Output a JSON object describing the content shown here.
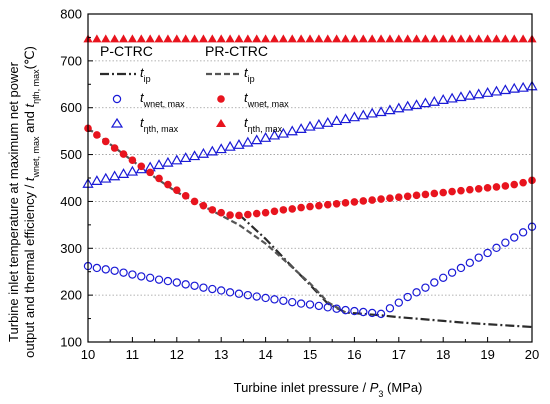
{
  "chart_data": {
    "type": "scatter",
    "xlabel_prefix": "Turbine inlet pressure / ",
    "xlabel_var": "P",
    "xlabel_sub": "3",
    "xlabel_suffix": " (MPa)",
    "ylabel_line1": "Turbine inlet temperature at maximum net power",
    "ylabel_line2_a": "output and thermal efficiency / ",
    "ylabel_line2_t1": "t",
    "ylabel_line2_s1": "wnet, max",
    "ylabel_line2_b": " and ",
    "ylabel_line2_t2": "t",
    "ylabel_line2_s2": "ηth, max",
    "ylabel_line2_c": "(℃)",
    "xlim": [
      10,
      20
    ],
    "ylim": [
      100,
      800
    ],
    "xticks": [
      "10",
      "11",
      "12",
      "13",
      "14",
      "15",
      "16",
      "17",
      "18",
      "19",
      "20"
    ],
    "yticks": [
      "100",
      "200",
      "300",
      "400",
      "500",
      "600",
      "700",
      "800"
    ],
    "grid": "horizontal dotted",
    "legend": {
      "group1": "P-CTRC",
      "group2": "PR-CTRC",
      "entries": [
        {
          "t": "t",
          "sub": "ip"
        },
        {
          "t": "t",
          "sub": "wnet, max"
        },
        {
          "t": "t",
          "sub": "ηth, max"
        }
      ]
    },
    "colors": {
      "blue": "#1a1ad6",
      "red": "#e8141e",
      "pctrc_line": "#2b2b2b",
      "prctrc_line": "#555555"
    },
    "series": [
      {
        "group": "P-CTRC",
        "var": "t_ip",
        "style": "dash-dot",
        "x": [
          13.4,
          14.0,
          14.5,
          15.0,
          15.4,
          15.8,
          16.2,
          16.6,
          17.0,
          17.5,
          18.0,
          18.5,
          19.0,
          19.5,
          20.0
        ],
        "y": [
          372,
          320,
          270,
          222,
          182,
          163,
          160,
          157,
          153,
          149,
          145,
          141,
          138,
          135,
          132
        ]
      },
      {
        "group": "PR-CTRC",
        "var": "t_ip",
        "style": "dash",
        "x": [
          10.0,
          10.5,
          11.0,
          11.5,
          12.0,
          12.5,
          13.0,
          13.4,
          14.0,
          14.5,
          15.0,
          15.4,
          15.8
        ],
        "y": [
          556,
          522,
          487,
          452,
          420,
          395,
          370,
          350,
          310,
          268,
          225,
          185,
          163
        ]
      },
      {
        "group": "P-CTRC",
        "var": "t_wnet_max",
        "style": "open-circle",
        "x": [
          10.0,
          10.2,
          10.4,
          10.6,
          10.8,
          11.0,
          11.2,
          11.4,
          11.6,
          11.8,
          12.0,
          12.2,
          12.4,
          12.6,
          12.8,
          13.0,
          13.2,
          13.4,
          13.6,
          13.8,
          14.0,
          14.2,
          14.4,
          14.6,
          14.8,
          15.0,
          15.2,
          15.4,
          15.6,
          15.8,
          16.0,
          16.2,
          16.4,
          16.6,
          16.8,
          17.0,
          17.2,
          17.4,
          17.6,
          17.8,
          18.0,
          18.2,
          18.4,
          18.6,
          18.8,
          19.0,
          19.2,
          19.4,
          19.6,
          19.8,
          20.0
        ],
        "y": [
          262,
          258,
          255,
          252,
          248,
          244,
          240,
          237,
          233,
          230,
          227,
          223,
          220,
          216,
          213,
          210,
          206,
          203,
          200,
          197,
          194,
          191,
          188,
          185,
          182,
          180,
          177,
          174,
          171,
          168,
          166,
          164,
          162,
          160,
          172,
          184,
          196,
          206,
          216,
          227,
          237,
          248,
          258,
          269,
          280,
          290,
          301,
          312,
          323,
          334,
          346
        ]
      },
      {
        "group": "P-CTRC",
        "var": "t_eta_max",
        "style": "open-triangle",
        "x": [
          10.0,
          10.2,
          10.4,
          10.6,
          10.8,
          11.0,
          11.2,
          11.4,
          11.6,
          11.8,
          12.0,
          12.2,
          12.4,
          12.6,
          12.8,
          13.0,
          13.2,
          13.4,
          13.6,
          13.8,
          14.0,
          14.2,
          14.4,
          14.6,
          14.8,
          15.0,
          15.2,
          15.4,
          15.6,
          15.8,
          16.0,
          16.2,
          16.4,
          16.6,
          16.8,
          17.0,
          17.2,
          17.4,
          17.6,
          17.8,
          18.0,
          18.2,
          18.4,
          18.6,
          18.8,
          19.0,
          19.2,
          19.4,
          19.6,
          19.8,
          20.0
        ],
        "y": [
          438,
          444,
          449,
          454,
          459,
          464,
          469,
          473,
          478,
          483,
          488,
          493,
          497,
          502,
          507,
          512,
          517,
          521,
          526,
          531,
          536,
          541,
          545,
          550,
          555,
          560,
          564,
          568,
          572,
          576,
          580,
          584,
          588,
          591,
          595,
          599,
          603,
          606,
          610,
          613,
          617,
          620,
          623,
          626,
          629,
          632,
          635,
          638,
          641,
          643,
          646
        ]
      },
      {
        "group": "PR-CTRC",
        "var": "t_wnet_max",
        "style": "filled-circle",
        "x": [
          10.0,
          10.2,
          10.4,
          10.6,
          10.8,
          11.0,
          11.2,
          11.4,
          11.6,
          11.8,
          12.0,
          12.2,
          12.4,
          12.6,
          12.8,
          13.0,
          13.2,
          13.4,
          13.6,
          13.8,
          14.0,
          14.2,
          14.4,
          14.6,
          14.8,
          15.0,
          15.2,
          15.4,
          15.6,
          15.8,
          16.0,
          16.2,
          16.4,
          16.6,
          16.8,
          17.0,
          17.2,
          17.4,
          17.6,
          17.8,
          18.0,
          18.2,
          18.4,
          18.6,
          18.8,
          19.0,
          19.2,
          19.4,
          19.6,
          19.8,
          20.0
        ],
        "y": [
          556,
          542,
          528,
          514,
          501,
          488,
          475,
          462,
          449,
          436,
          424,
          412,
          400,
          391,
          382,
          376,
          371,
          370,
          372,
          374,
          376,
          379,
          382,
          384,
          387,
          389,
          391,
          393,
          395,
          397,
          399,
          401,
          403,
          405,
          407,
          409,
          411,
          413,
          415,
          417,
          419,
          421,
          423,
          425,
          427,
          429,
          431,
          433,
          436,
          440,
          445
        ]
      },
      {
        "group": "PR-CTRC",
        "var": "t_eta_max",
        "style": "filled-triangle",
        "x": [
          10.0,
          10.2,
          10.4,
          10.6,
          10.8,
          11.0,
          11.2,
          11.4,
          11.6,
          11.8,
          12.0,
          12.2,
          12.4,
          12.6,
          12.8,
          13.0,
          13.2,
          13.4,
          13.6,
          13.8,
          14.0,
          14.2,
          14.4,
          14.6,
          14.8,
          15.0,
          15.2,
          15.4,
          15.6,
          15.8,
          16.0,
          16.2,
          16.4,
          16.6,
          16.8,
          17.0,
          17.2,
          17.4,
          17.6,
          17.8,
          18.0,
          18.2,
          18.4,
          18.6,
          18.8,
          19.0,
          19.2,
          19.4,
          19.6,
          19.8,
          20.0
        ],
        "y": [
          747,
          747,
          747,
          747,
          747,
          747,
          747,
          747,
          747,
          747,
          747,
          747,
          747,
          747,
          747,
          747,
          747,
          747,
          747,
          747,
          747,
          747,
          747,
          747,
          747,
          747,
          747,
          747,
          747,
          747,
          747,
          747,
          747,
          747,
          747,
          747,
          747,
          747,
          747,
          747,
          747,
          747,
          747,
          747,
          747,
          747,
          747,
          747,
          747,
          747,
          747
        ]
      }
    ]
  }
}
